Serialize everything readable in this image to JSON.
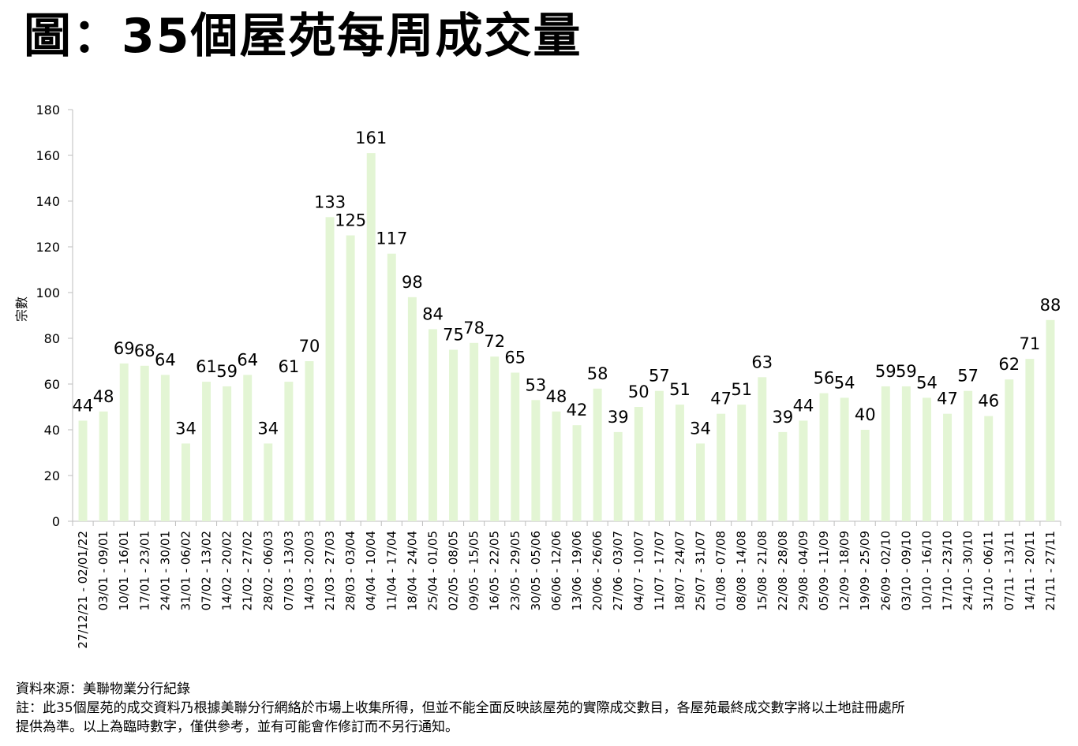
{
  "title": "圖：35個屋苑每周成交量",
  "chart_data": {
    "type": "bar",
    "title": "圖：35個屋苑每周成交量",
    "xlabel": "",
    "ylabel": "宗數",
    "ylim": [
      0,
      180
    ],
    "yticks": [
      0,
      20,
      40,
      60,
      80,
      100,
      120,
      140,
      160,
      180
    ],
    "bar_color": "#e3f5d4",
    "grid": false,
    "data_labels": true,
    "categories": [
      "27/12/21 - 02/01/22",
      "03/01 - 09/01",
      "10/01 - 16/01",
      "17/01 - 23/01",
      "24/01 - 30/01",
      "31/01 - 06/02",
      "07/02 - 13/02",
      "14/02 - 20/02",
      "21/02 - 27/02",
      "28/02 - 06/03",
      "07/03 - 13/03",
      "14/03 - 20/03",
      "21/03 - 27/03",
      "28/03 - 03/04",
      "04/04 - 10/04",
      "11/04 - 17/04",
      "18/04 - 24/04",
      "25/04 - 01/05",
      "02/05 - 08/05",
      "09/05 - 15/05",
      "16/05 - 22/05",
      "23/05 - 29/05",
      "30/05 - 05/06",
      "06/06 - 12/06",
      "13/06 - 19/06",
      "20/06 - 26/06",
      "27/06 - 03/07",
      "04/07 - 10/07",
      "11/07 - 17/07",
      "18/07 - 24/07",
      "25/07 - 31/07",
      "01/08 - 07/08",
      "08/08 - 14/08",
      "15/08 - 21/08",
      "22/08 - 28/08",
      "29/08 - 04/09",
      "05/09 - 11/09",
      "12/09 - 18/09",
      "19/09 - 25/09",
      "26/09 - 02/10",
      "03/10 - 09/10",
      "10/10 - 16/10",
      "17/10 - 23/10",
      "24/10 - 30/10",
      "31/10 - 06/11",
      "07/11 - 13/11",
      "14/11 - 20/11",
      "21/11 - 27/11"
    ],
    "values": [
      44,
      48,
      69,
      68,
      64,
      34,
      61,
      59,
      64,
      34,
      61,
      70,
      133,
      125,
      161,
      117,
      98,
      84,
      75,
      78,
      72,
      65,
      53,
      48,
      42,
      58,
      39,
      50,
      57,
      51,
      34,
      47,
      51,
      63,
      39,
      44,
      56,
      54,
      40,
      59,
      59,
      54,
      47,
      57,
      46,
      62,
      71,
      88
    ]
  },
  "notes": {
    "source": "資料來源：美聯物業分行紀錄",
    "note_line1": "註：此35個屋苑的成交資料乃根據美聯分行網絡於市場上收集所得，但並不能全面反映該屋苑的實際成交數目，各屋苑最終成交數字將以土地註冊處所",
    "note_line2": "提供為準。以上為臨時數字，僅供參考，並有可能會作修訂而不另行通知。"
  }
}
